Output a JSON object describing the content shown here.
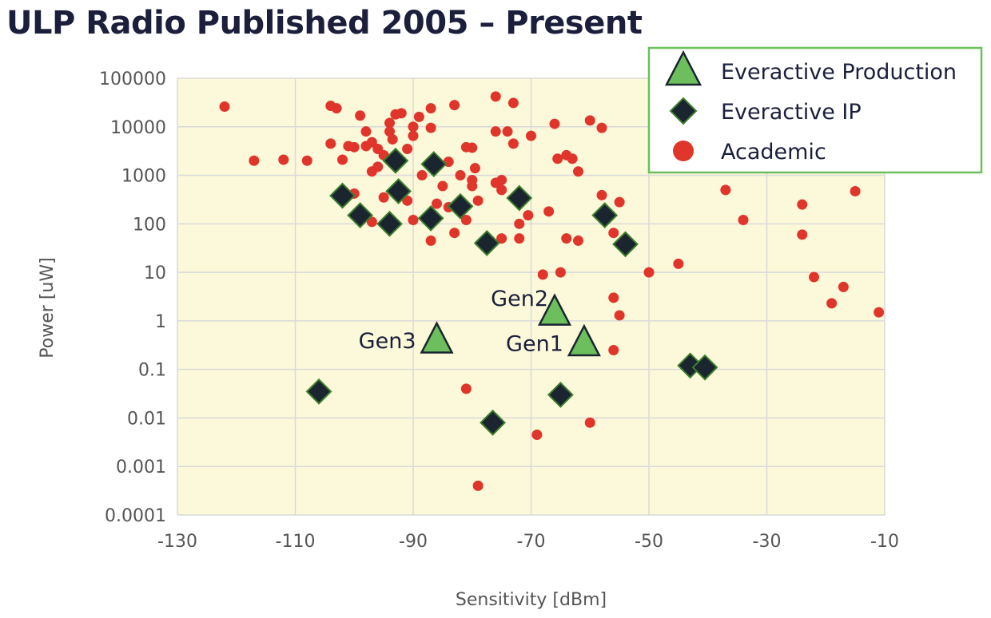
{
  "chart_data": {
    "type": "scatter",
    "title": "ULP Radio Published 2005 – Present",
    "xlabel": "Sensitivity [dBm]",
    "ylabel": "Power [uW]",
    "xlim": [
      -130,
      -10
    ],
    "ylim": [
      0.0001,
      100000
    ],
    "yscale": "log",
    "xticks": [
      "-130",
      "-110",
      "-90",
      "-70",
      "-50",
      "-30",
      "-10"
    ],
    "yticks": [
      "0.0001",
      "0.001",
      "0.01",
      "0.1",
      "1",
      "10",
      "100",
      "1000",
      "10000",
      "100000"
    ],
    "grid": true,
    "legend_position": "top-right",
    "colors": {
      "plot_bg": "#fbf9d9",
      "grid": "#d9d9d9",
      "academic": "#e0352b",
      "ip": "#1b2530",
      "production": "#6cbf5c",
      "marker_edge": "#3b7d2c",
      "legend_border": "#6cbf5c"
    },
    "series": [
      {
        "name": "Everactive Production",
        "marker": "triangle",
        "points": [
          {
            "x": -86,
            "y": 0.4,
            "label": "Gen3"
          },
          {
            "x": -66,
            "y": 1.5,
            "label": "Gen2"
          },
          {
            "x": -61,
            "y": 0.35,
            "label": "Gen1"
          }
        ]
      },
      {
        "name": "Everactive IP",
        "marker": "diamond",
        "points": [
          {
            "x": -102,
            "y": 380
          },
          {
            "x": -99,
            "y": 150
          },
          {
            "x": -94,
            "y": 100
          },
          {
            "x": -93,
            "y": 2000
          },
          {
            "x": -92.5,
            "y": 470
          },
          {
            "x": -87,
            "y": 130
          },
          {
            "x": -86.5,
            "y": 1700
          },
          {
            "x": -82,
            "y": 230
          },
          {
            "x": -77.5,
            "y": 40
          },
          {
            "x": -72,
            "y": 340
          },
          {
            "x": -57.5,
            "y": 150
          },
          {
            "x": -54,
            "y": 38
          },
          {
            "x": -43,
            "y": 0.12
          },
          {
            "x": -40.5,
            "y": 0.11
          },
          {
            "x": -106,
            "y": 0.035
          },
          {
            "x": -76.5,
            "y": 0.008
          },
          {
            "x": -65,
            "y": 0.03
          }
        ]
      },
      {
        "name": "Academic",
        "marker": "circle",
        "points": [
          {
            "x": -122,
            "y": 26000
          },
          {
            "x": -117,
            "y": 2000
          },
          {
            "x": -112,
            "y": 2100
          },
          {
            "x": -108,
            "y": 2000
          },
          {
            "x": -104,
            "y": 27000
          },
          {
            "x": -103,
            "y": 24000
          },
          {
            "x": -104,
            "y": 4500
          },
          {
            "x": -102,
            "y": 2100
          },
          {
            "x": -101,
            "y": 4000
          },
          {
            "x": -100,
            "y": 3800
          },
          {
            "x": -99,
            "y": 17000
          },
          {
            "x": -98,
            "y": 8000
          },
          {
            "x": -98,
            "y": 4000
          },
          {
            "x": -97,
            "y": 4800
          },
          {
            "x": -96,
            "y": 3500
          },
          {
            "x": -97,
            "y": 1200
          },
          {
            "x": -96,
            "y": 1500
          },
          {
            "x": -95,
            "y": 2600
          },
          {
            "x": -94,
            "y": 12000
          },
          {
            "x": -94,
            "y": 8000
          },
          {
            "x": -93.5,
            "y": 5500
          },
          {
            "x": -93,
            "y": 18000
          },
          {
            "x": -92,
            "y": 19000
          },
          {
            "x": -91,
            "y": 3500
          },
          {
            "x": -90,
            "y": 10000
          },
          {
            "x": -90,
            "y": 6500
          },
          {
            "x": -89,
            "y": 16000
          },
          {
            "x": -88.5,
            "y": 1000
          },
          {
            "x": -87,
            "y": 24000
          },
          {
            "x": -87,
            "y": 9500
          },
          {
            "x": -86,
            "y": 1800
          },
          {
            "x": -85,
            "y": 600
          },
          {
            "x": -84,
            "y": 1900
          },
          {
            "x": -83,
            "y": 28000
          },
          {
            "x": -82,
            "y": 1000
          },
          {
            "x": -81,
            "y": 3800
          },
          {
            "x": -80,
            "y": 3700
          },
          {
            "x": -80,
            "y": 800
          },
          {
            "x": -80,
            "y": 600
          },
          {
            "x": -79,
            "y": 300
          },
          {
            "x": -79.5,
            "y": 1400
          },
          {
            "x": -76,
            "y": 42000
          },
          {
            "x": -76,
            "y": 8000
          },
          {
            "x": -74,
            "y": 8000
          },
          {
            "x": -73,
            "y": 31000
          },
          {
            "x": -73,
            "y": 4500
          },
          {
            "x": -76,
            "y": 700
          },
          {
            "x": -75,
            "y": 800
          },
          {
            "x": -75,
            "y": 500
          },
          {
            "x": -70,
            "y": 6500
          },
          {
            "x": -66,
            "y": 11500
          },
          {
            "x": -65.5,
            "y": 2200
          },
          {
            "x": -64,
            "y": 2600
          },
          {
            "x": -63,
            "y": 2200
          },
          {
            "x": -62,
            "y": 1200
          },
          {
            "x": -60,
            "y": 13500
          },
          {
            "x": -58,
            "y": 9500
          },
          {
            "x": -58,
            "y": 390
          },
          {
            "x": -55,
            "y": 280
          },
          {
            "x": -67,
            "y": 180
          },
          {
            "x": -70.5,
            "y": 150
          },
          {
            "x": -72,
            "y": 100
          },
          {
            "x": -72,
            "y": 50
          },
          {
            "x": -75,
            "y": 50
          },
          {
            "x": -81,
            "y": 120
          },
          {
            "x": -84,
            "y": 220
          },
          {
            "x": -86,
            "y": 260
          },
          {
            "x": -90,
            "y": 120
          },
          {
            "x": -91,
            "y": 300
          },
          {
            "x": -95,
            "y": 350
          },
          {
            "x": -97,
            "y": 110
          },
          {
            "x": -100,
            "y": 420
          },
          {
            "x": -87,
            "y": 45
          },
          {
            "x": -83,
            "y": 65
          },
          {
            "x": -64,
            "y": 50
          },
          {
            "x": -62,
            "y": 45
          },
          {
            "x": -56,
            "y": 65
          },
          {
            "x": -68,
            "y": 9
          },
          {
            "x": -65,
            "y": 10
          },
          {
            "x": -50,
            "y": 10
          },
          {
            "x": -45,
            "y": 15
          },
          {
            "x": -37,
            "y": 500
          },
          {
            "x": -34,
            "y": 120
          },
          {
            "x": -24,
            "y": 250
          },
          {
            "x": -24,
            "y": 60
          },
          {
            "x": -22,
            "y": 8
          },
          {
            "x": -17,
            "y": 5
          },
          {
            "x": -19,
            "y": 2.3
          },
          {
            "x": -15,
            "y": 470
          },
          {
            "x": -11,
            "y": 1.5
          },
          {
            "x": -56,
            "y": 3
          },
          {
            "x": -55,
            "y": 1.3
          },
          {
            "x": -56,
            "y": 0.25
          },
          {
            "x": -81,
            "y": 0.04
          },
          {
            "x": -60,
            "y": 0.008
          },
          {
            "x": -69,
            "y": 0.0045
          },
          {
            "x": -79,
            "y": 0.0004
          }
        ]
      }
    ]
  }
}
